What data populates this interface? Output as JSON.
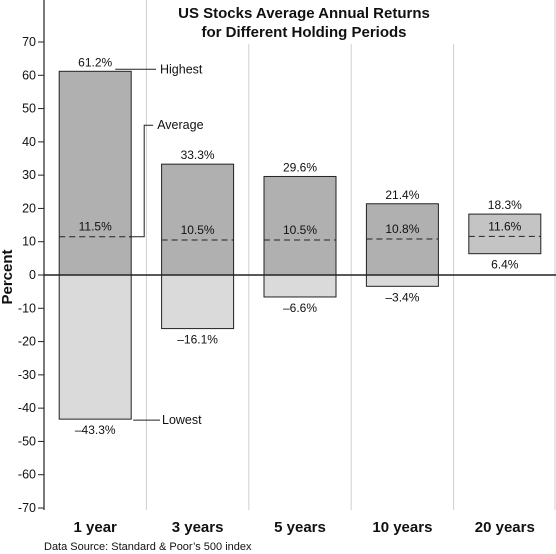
{
  "chart_data": {
    "type": "bar",
    "title_line1": "US Stocks Average Annual Returns",
    "title_line2": "for Different Holding Periods",
    "ylabel": "Percent",
    "ylim": [
      -70,
      70
    ],
    "yticks": [
      70,
      60,
      50,
      40,
      30,
      20,
      10,
      0,
      -10,
      -20,
      -30,
      -40,
      -50,
      -60,
      -70
    ],
    "ytick_labels": [
      "70",
      "60",
      "50",
      "40",
      "30",
      "20",
      "10",
      "0",
      "-10",
      "-20",
      "-30",
      "-40",
      "-50",
      "-60",
      "-70"
    ],
    "categories": [
      "1 year",
      "3 years",
      "5 years",
      "10 years",
      "20 years"
    ],
    "series": [
      {
        "name": "Highest",
        "values": [
          61.2,
          33.3,
          29.6,
          21.4,
          18.3
        ],
        "labels": [
          "61.2%",
          "33.3%",
          "29.6%",
          "21.4%",
          "18.3%"
        ]
      },
      {
        "name": "Average",
        "values": [
          11.5,
          10.5,
          10.5,
          10.8,
          11.6
        ],
        "labels": [
          "11.5%",
          "10.5%",
          "10.5%",
          "10.8%",
          "11.6%"
        ]
      },
      {
        "name": "Lowest",
        "values": [
          -43.3,
          -16.1,
          -6.6,
          -3.4,
          6.4
        ],
        "labels": [
          "–43.3%",
          "–16.1%",
          "–6.6%",
          "–3.4%",
          "6.4%"
        ]
      }
    ],
    "annotations": {
      "highest": "Highest",
      "average": "Average",
      "lowest": "Lowest"
    },
    "source": "Data Source: Standard & Poor’s 500 index",
    "grid": "vertical",
    "colors": {
      "positive": "#b0b0b0",
      "negative": "#dadada",
      "positive_light": "#c4c4c4",
      "axis": "#222222",
      "grid": "#cfcfcf"
    }
  }
}
